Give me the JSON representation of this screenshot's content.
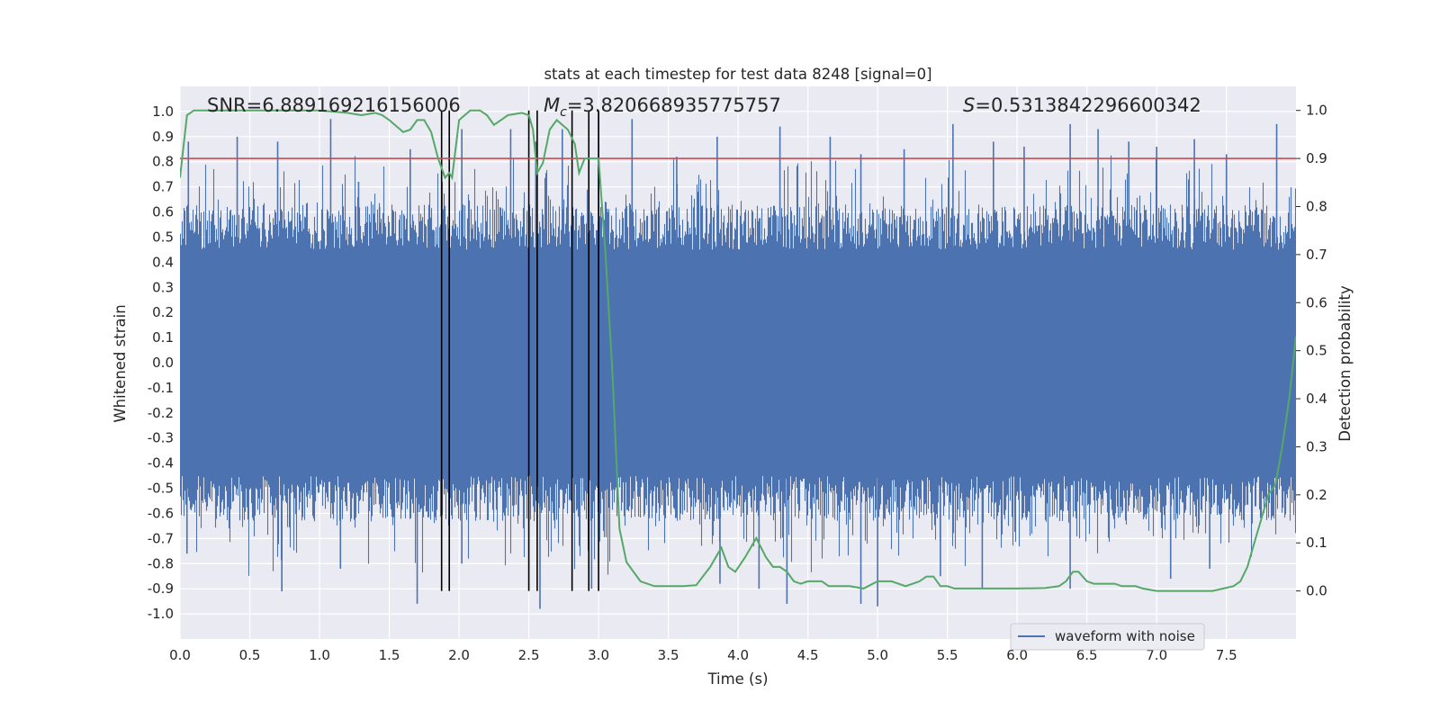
{
  "chart_data": {
    "type": "line",
    "title": "stats at each timestep for test data 8248 [signal=0]",
    "xlabel": "Time (s)",
    "ylabel_left": "Whitened strain",
    "ylabel_right": "Detection probability",
    "xlim": [
      0,
      7.9985
    ],
    "ylim_left": [
      -1.1,
      1.1
    ],
    "ylim_right": [
      -0.1,
      1.05
    ],
    "x_ticks": [
      "0.0",
      "0.5",
      "1.0",
      "1.5",
      "2.0",
      "2.5",
      "3.0",
      "3.5",
      "4.0",
      "4.5",
      "5.0",
      "5.5",
      "6.0",
      "6.5",
      "7.0",
      "7.5"
    ],
    "y_ticks_left": [
      "1.0",
      "0.9",
      "0.8",
      "0.7",
      "0.6",
      "0.5",
      "0.4",
      "0.3",
      "0.2",
      "0.1",
      "0.0",
      "-0.1",
      "-0.2",
      "-0.3",
      "-0.4",
      "-0.5",
      "-0.6",
      "-0.7",
      "-0.8",
      "-0.9",
      "-1.0"
    ],
    "y_ticks_right": [
      "1.0",
      "0.9",
      "0.8",
      "0.7",
      "0.6",
      "0.5",
      "0.4",
      "0.3",
      "0.2",
      "0.1",
      "0.0"
    ],
    "grid": true,
    "legend": {
      "placement": "lower-right",
      "entries": [
        "waveform with noise"
      ]
    },
    "annotations": {
      "snr": "SNR=6.889169216156006",
      "mc_symbol": "M",
      "mc_sub": "c",
      "mc_value": "=3.820668935775757",
      "s_symbol": "S",
      "s_value": "=0.5313842296600342"
    },
    "threshold": 0.9,
    "vertical_markers": [
      1.875,
      1.93,
      2.5,
      2.56,
      2.81,
      2.93,
      3.0
    ],
    "colors": {
      "waveform": "#4c72b0",
      "probability": "#55a868",
      "threshold": "#c44e52",
      "markers": "#000000",
      "axes_bg": "#eaeaf2"
    },
    "series": [
      {
        "name": "waveform with noise",
        "kind": "strain",
        "core_amplitude": 0.4,
        "spike_peaks": [
          {
            "x": 0.06,
            "v": 0.88
          },
          {
            "x": 0.41,
            "v": 0.9
          },
          {
            "x": 0.7,
            "v": 0.88
          },
          {
            "x": 1.08,
            "v": 0.97
          },
          {
            "x": 1.28,
            "v": 0.72
          },
          {
            "x": 1.43,
            "v": 0.62
          },
          {
            "x": 1.65,
            "v": 0.85
          },
          {
            "x": 2.02,
            "v": 0.93
          },
          {
            "x": 2.37,
            "v": 0.93
          },
          {
            "x": 2.55,
            "v": 0.88
          },
          {
            "x": 2.74,
            "v": 0.93
          },
          {
            "x": 3.0,
            "v": 1.0
          },
          {
            "x": 3.24,
            "v": 0.97
          },
          {
            "x": 3.56,
            "v": 0.82
          },
          {
            "x": 3.85,
            "v": 0.9
          },
          {
            "x": 4.3,
            "v": 0.94
          },
          {
            "x": 4.66,
            "v": 0.9
          },
          {
            "x": 4.88,
            "v": 0.83
          },
          {
            "x": 5.19,
            "v": 0.85
          },
          {
            "x": 5.54,
            "v": 0.95
          },
          {
            "x": 5.83,
            "v": 0.88
          },
          {
            "x": 6.05,
            "v": 0.86
          },
          {
            "x": 6.38,
            "v": 0.95
          },
          {
            "x": 6.58,
            "v": 0.93
          },
          {
            "x": 6.8,
            "v": 0.88
          },
          {
            "x": 7.0,
            "v": 0.86
          },
          {
            "x": 7.27,
            "v": 0.89
          },
          {
            "x": 7.5,
            "v": 0.83
          },
          {
            "x": 7.86,
            "v": 0.95
          },
          {
            "x": 0.05,
            "v": -0.76
          },
          {
            "x": 0.73,
            "v": -0.91
          },
          {
            "x": 1.15,
            "v": -0.82
          },
          {
            "x": 1.7,
            "v": -0.96
          },
          {
            "x": 2.02,
            "v": -0.8
          },
          {
            "x": 2.58,
            "v": -0.98
          },
          {
            "x": 2.95,
            "v": -0.9
          },
          {
            "x": 3.87,
            "v": -0.88
          },
          {
            "x": 4.15,
            "v": -0.9
          },
          {
            "x": 4.35,
            "v": -0.96
          },
          {
            "x": 4.88,
            "v": -0.96
          },
          {
            "x": 5.0,
            "v": -0.97
          },
          {
            "x": 5.45,
            "v": -0.85
          },
          {
            "x": 5.75,
            "v": -0.9
          },
          {
            "x": 6.38,
            "v": -0.9
          },
          {
            "x": 7.1,
            "v": -0.86
          },
          {
            "x": 7.38,
            "v": -0.82
          }
        ]
      },
      {
        "name": "",
        "kind": "probability",
        "x": [
          0.0,
          0.05,
          0.1,
          0.2,
          0.4,
          0.6,
          0.8,
          1.0,
          1.2,
          1.3,
          1.4,
          1.45,
          1.5,
          1.6,
          1.65,
          1.7,
          1.75,
          1.8,
          1.85,
          1.9,
          1.93,
          1.95,
          2.0,
          2.08,
          2.15,
          2.2,
          2.25,
          2.3,
          2.35,
          2.45,
          2.5,
          2.53,
          2.56,
          2.6,
          2.65,
          2.7,
          2.78,
          2.83,
          2.86,
          2.9,
          2.95,
          3.0,
          3.05,
          3.1,
          3.15,
          3.2,
          3.3,
          3.4,
          3.6,
          3.7,
          3.8,
          3.88,
          3.93,
          3.98,
          4.05,
          4.13,
          4.2,
          4.25,
          4.3,
          4.35,
          4.4,
          4.45,
          4.5,
          4.55,
          4.6,
          4.65,
          4.7,
          4.75,
          4.8,
          4.9,
          5.0,
          5.05,
          5.1,
          5.2,
          5.3,
          5.35,
          5.4,
          5.45,
          5.5,
          5.55,
          5.6,
          5.7,
          5.8,
          5.9,
          6.0,
          6.2,
          6.3,
          6.35,
          6.4,
          6.44,
          6.5,
          6.55,
          6.6,
          6.7,
          6.75,
          6.8,
          6.85,
          6.9,
          7.0,
          7.2,
          7.4,
          7.55,
          7.6,
          7.65,
          7.7,
          7.75,
          7.8,
          7.85,
          7.9,
          7.95,
          7.998
        ],
        "values": [
          0.86,
          0.99,
          1.0,
          1.0,
          1.0,
          1.0,
          1.0,
          1.0,
          0.995,
          0.99,
          0.995,
          0.99,
          0.98,
          0.955,
          0.96,
          0.98,
          0.98,
          0.955,
          0.9,
          0.86,
          0.87,
          0.86,
          0.98,
          1.0,
          1.0,
          0.99,
          0.97,
          0.98,
          0.99,
          0.995,
          0.99,
          0.96,
          0.87,
          0.89,
          0.96,
          0.98,
          0.96,
          0.93,
          0.87,
          0.9,
          0.9,
          0.9,
          0.7,
          0.45,
          0.13,
          0.06,
          0.02,
          0.01,
          0.01,
          0.012,
          0.05,
          0.09,
          0.05,
          0.04,
          0.07,
          0.11,
          0.07,
          0.05,
          0.05,
          0.04,
          0.02,
          0.015,
          0.02,
          0.02,
          0.02,
          0.01,
          0.01,
          0.01,
          0.01,
          0.005,
          0.02,
          0.02,
          0.02,
          0.01,
          0.02,
          0.03,
          0.03,
          0.01,
          0.01,
          0.005,
          0.005,
          0.005,
          0.005,
          0.005,
          0.005,
          0.006,
          0.01,
          0.02,
          0.04,
          0.04,
          0.02,
          0.015,
          0.015,
          0.015,
          0.01,
          0.01,
          0.01,
          0.005,
          0.0,
          0.0,
          0.0,
          0.01,
          0.02,
          0.05,
          0.1,
          0.15,
          0.2,
          0.22,
          0.3,
          0.4,
          0.53
        ]
      }
    ]
  }
}
